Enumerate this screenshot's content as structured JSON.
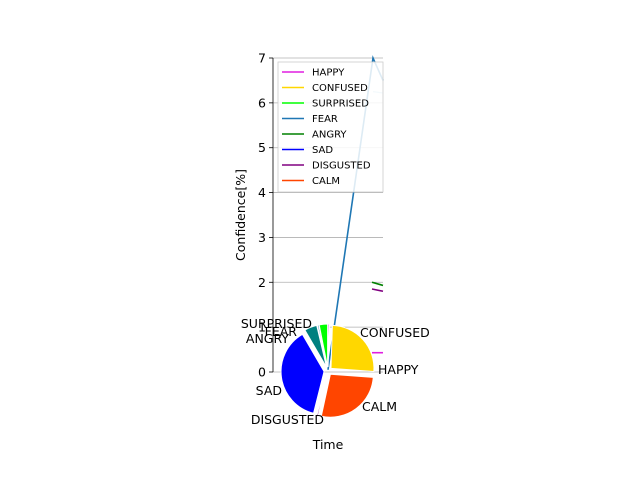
{
  "chart_data": [
    {
      "type": "line",
      "title": "",
      "xlabel": "Time",
      "ylabel": "Confidence[%]",
      "ylim": [
        0,
        7
      ],
      "y_ticks": [
        "0",
        "1",
        "2",
        "3",
        "4",
        "5",
        "6",
        "7"
      ],
      "grid": "horizontal",
      "legend_placement": "upper-left",
      "series": [
        {
          "name": "HAPPY",
          "color": "#e01ee0",
          "values": [
            0.43,
            0.43
          ]
        },
        {
          "name": "CONFUSED",
          "color": "#ffd700",
          "values": [
            null,
            null
          ]
        },
        {
          "name": "SURPRISED",
          "color": "#00ff00",
          "values": [
            null,
            null
          ]
        },
        {
          "name": "FEAR",
          "color": "#1f77b4",
          "values": [
            0.05,
            7.0,
            6.5
          ]
        },
        {
          "name": "ANGRY",
          "color": "#008000",
          "values": [
            2.0,
            1.93
          ]
        },
        {
          "name": "SAD",
          "color": "#0000ff",
          "values": [
            null,
            null
          ]
        },
        {
          "name": "DISGUSTED",
          "color": "#800080",
          "values": [
            1.85,
            1.8
          ]
        },
        {
          "name": "CALM",
          "color": "#ff4500",
          "values": [
            null,
            null
          ]
        },
        {
          "name": "",
          "color": "#add8e6",
          "values": [
            6.25,
            6.22
          ]
        }
      ]
    },
    {
      "type": "pie",
      "slices": [
        {
          "label": "HAPPY",
          "value": 0.5,
          "color": "#e01ee0"
        },
        {
          "label": "CONFUSED",
          "value": 24.5,
          "color": "#ffd700"
        },
        {
          "label": "CALM",
          "value": 26.0,
          "color": "#ff4500"
        },
        {
          "label": "DISGUSTED",
          "value": 0.5,
          "color": "#800080"
        },
        {
          "label": "SAD",
          "value": 36.0,
          "color": "#0000ff"
        },
        {
          "label": "ANGRY",
          "value": 4.5,
          "color": "#008080"
        },
        {
          "label": "FEAR",
          "value": 0.5,
          "color": "#1f77b4"
        },
        {
          "label": "SURPRISED",
          "value": 3.0,
          "color": "#00ff00"
        }
      ]
    }
  ]
}
